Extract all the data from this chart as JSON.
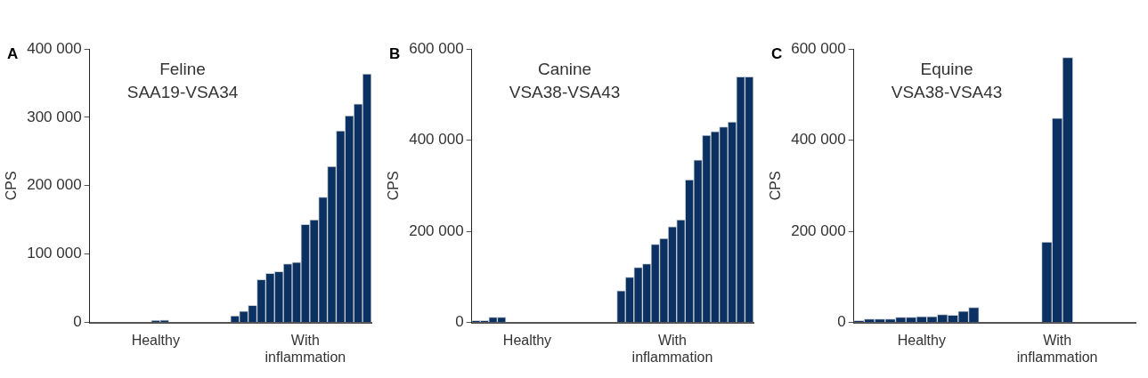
{
  "chart_data": [
    {
      "type": "bar",
      "title": "A",
      "annotations": [
        "Feline",
        "SAA19-VSA34"
      ],
      "ylabel": "CPS",
      "color": "#0a3161",
      "categories": [
        null,
        null,
        null,
        null,
        null,
        null,
        null,
        "Healthy",
        null,
        null,
        null,
        null,
        null,
        null,
        null,
        null,
        null,
        null,
        null,
        null,
        null,
        null,
        null,
        null,
        "With inflammation",
        null,
        null,
        null,
        null,
        null,
        null,
        null
      ],
      "values": [
        0,
        0,
        0,
        0,
        0,
        0,
        0,
        3000,
        3500,
        0,
        0,
        0,
        0,
        0,
        0,
        0,
        9900,
        16700,
        24900,
        62800,
        71900,
        74600,
        85900,
        88100,
        143300,
        150100,
        183500,
        228300,
        280200,
        302400,
        319600,
        363400
      ],
      "ylim": [
        0,
        400000
      ],
      "yticks": [
        {
          "value": 0,
          "label": "0"
        },
        {
          "value": 100000,
          "label": "100 000"
        },
        {
          "value": 200000,
          "label": "200 000"
        },
        {
          "value": 300000,
          "label": "300 000"
        },
        {
          "value": 400000,
          "label": "400 000"
        }
      ],
      "grid": false,
      "legend": false
    },
    {
      "type": "bar",
      "title": "B",
      "annotations": [
        "Canine",
        "VSA38-VSA43"
      ],
      "ylabel": "CPS",
      "color": "#0a3161",
      "categories": [
        null,
        null,
        null,
        null,
        null,
        null,
        "Healthy",
        null,
        null,
        null,
        null,
        null,
        null,
        null,
        null,
        null,
        null,
        null,
        null,
        null,
        null,
        null,
        null,
        "With inflammation",
        null,
        null,
        null,
        null,
        null,
        null,
        null,
        null,
        null
      ],
      "values": [
        4200,
        4200,
        11800,
        11800,
        null,
        null,
        null,
        null,
        null,
        null,
        null,
        null,
        null,
        null,
        null,
        null,
        null,
        69600,
        99500,
        121100,
        128800,
        171900,
        184400,
        210200,
        225500,
        313200,
        356400,
        410600,
        419000,
        429400,
        439900,
        538700,
        538700
      ],
      "ylim": [
        0,
        600000
      ],
      "yticks": [
        {
          "value": 0,
          "label": "0"
        },
        {
          "value": 200000,
          "label": "200 000"
        },
        {
          "value": 400000,
          "label": "400 000"
        },
        {
          "value": 600000,
          "label": "600 000"
        }
      ],
      "grid": false,
      "legend": false
    },
    {
      "type": "bar",
      "title": "C",
      "annotations": [
        "Equine",
        "VSA38-VSA43"
      ],
      "ylabel": "CPS",
      "color": "#0a3161",
      "categories": [
        null,
        null,
        null,
        null,
        null,
        null,
        "Healthy",
        null,
        null,
        null,
        null,
        null,
        null,
        null,
        null,
        null,
        null,
        null,
        null,
        "With inflammation",
        null,
        null,
        null,
        null,
        null,
        null,
        null
      ],
      "values": [
        4200,
        7700,
        7700,
        7700,
        11800,
        11800,
        13200,
        13200,
        17400,
        16000,
        25100,
        33400,
        null,
        null,
        null,
        null,
        null,
        null,
        176800,
        448200,
        581200,
        null,
        null,
        null,
        null,
        null,
        null
      ],
      "ylim": [
        0,
        600000
      ],
      "yticks": [
        {
          "value": 0,
          "label": "0"
        },
        {
          "value": 200000,
          "label": "200 000"
        },
        {
          "value": 400000,
          "label": "400 000"
        },
        {
          "value": 600000,
          "label": "600 000"
        }
      ],
      "grid": false,
      "legend": false
    }
  ]
}
